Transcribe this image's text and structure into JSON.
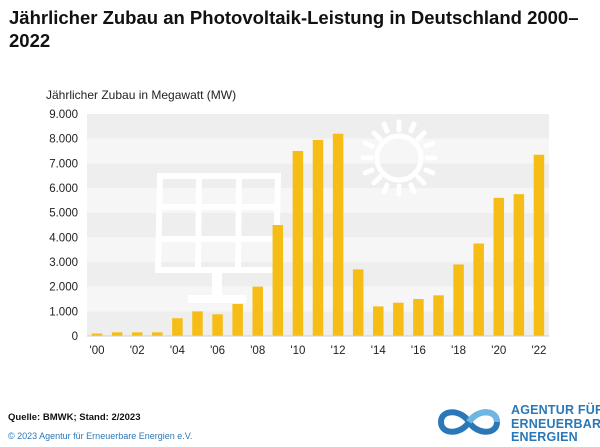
{
  "title": "Jährlicher Zubau an Photovoltaik-Leistung in Deutschland 2000–2022",
  "ylabel": "Jährlicher Zubau in Megawatt (MW)",
  "source": "Quelle: BMWK; Stand: 2/2023",
  "copyright": "© 2023 Agentur für Erneuerbare Energien e.V.",
  "logo": {
    "lines": [
      "AGENTUR FÜR",
      "ERNEUERBARE",
      "ENERGIEN"
    ],
    "icon": "infinity-loop-icon"
  },
  "illustrations": [
    "solar-panel-icon",
    "sun-icon"
  ],
  "colors": {
    "bar": "#f6bd16",
    "grid_band": "#eeeeee",
    "accent": "#2a78b8"
  },
  "chart_data": {
    "type": "bar",
    "title": "Jährlicher Zubau an Photovoltaik-Leistung in Deutschland 2000–2022",
    "ylabel": "Jährlicher Zubau in Megawatt (MW)",
    "xlabel": "",
    "categories": [
      "2000",
      "2001",
      "2002",
      "2003",
      "2004",
      "2005",
      "2006",
      "2007",
      "2008",
      "2009",
      "2010",
      "2011",
      "2012",
      "2013",
      "2014",
      "2015",
      "2016",
      "2017",
      "2018",
      "2019",
      "2020",
      "2021",
      "2022"
    ],
    "x_tick_labels": [
      "'00",
      "",
      "'02",
      "",
      "'04",
      "",
      "'06",
      "",
      "'08",
      "",
      "'10",
      "",
      "'12",
      "",
      "'14",
      "",
      "'16",
      "",
      "'18",
      "",
      "'20",
      "",
      "'22"
    ],
    "values": [
      100,
      150,
      150,
      150,
      720,
      1000,
      880,
      1300,
      2000,
      4500,
      7500,
      7950,
      8200,
      2700,
      1200,
      1350,
      1500,
      1650,
      2900,
      3750,
      5600,
      5750,
      7350
    ],
    "ylim": [
      0,
      9000
    ],
    "yticks": [
      0,
      1000,
      2000,
      3000,
      4000,
      5000,
      6000,
      7000,
      8000,
      9000
    ],
    "ytick_labels": [
      "0",
      "1.000",
      "2.000",
      "3.000",
      "4.000",
      "5.000",
      "6.000",
      "7.000",
      "8.000",
      "9.000"
    ],
    "grid": true,
    "legend": "none"
  }
}
